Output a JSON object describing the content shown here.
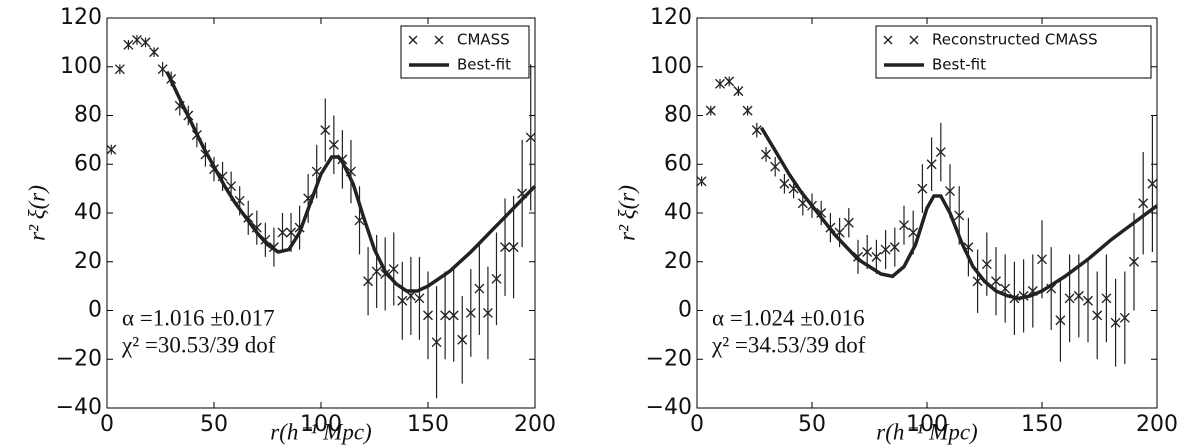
{
  "chart_data": [
    {
      "type": "scatter",
      "xlabel": "r(h⁻¹ Mpc)",
      "ylabel": "r² ξ(r)",
      "xlim": [
        0,
        200
      ],
      "ylim": [
        -40,
        120
      ],
      "xticks": [
        0,
        50,
        100,
        150,
        200
      ],
      "yticks": [
        {
          "value": -40,
          "label": "−40"
        },
        {
          "value": -20,
          "label": "−20"
        },
        0,
        20,
        40,
        60,
        80,
        100,
        120
      ],
      "legend": "upper right",
      "annotations": [
        "α =1.016 ±0.017",
        "χ² =30.53/39  dof"
      ],
      "series": [
        {
          "name": "CMASS",
          "type": "scatter",
          "color": "#222222",
          "x": [
            2,
            6,
            10,
            14,
            18,
            22,
            26,
            30,
            34,
            38,
            42,
            46,
            50,
            54,
            58,
            62,
            66,
            70,
            74,
            78,
            82,
            86,
            90,
            94,
            98,
            102,
            106,
            110,
            114,
            118,
            122,
            126,
            130,
            134,
            138,
            142,
            146,
            150,
            154,
            158,
            162,
            166,
            170,
            174,
            178,
            182,
            186,
            190,
            194,
            198
          ],
          "values": [
            66,
            99,
            109,
            111,
            110,
            106,
            99,
            95,
            84,
            80,
            72,
            64,
            58,
            55,
            51,
            45,
            38,
            34,
            29,
            26,
            32,
            32,
            34,
            46,
            57,
            74,
            68,
            62,
            57,
            37,
            12,
            16,
            15,
            17,
            4,
            6,
            5,
            -2,
            -13,
            -2,
            -2,
            -12,
            -1,
            9,
            -1,
            13,
            26,
            26,
            48,
            71
          ],
          "errors": [
            2,
            2,
            2,
            2,
            2,
            2,
            3,
            3,
            4,
            4,
            5,
            5,
            5,
            6,
            6,
            6,
            7,
            7,
            7,
            8,
            8,
            8,
            9,
            10,
            11,
            13,
            12,
            12,
            13,
            14,
            14,
            15,
            15,
            15,
            16,
            16,
            17,
            18,
            23,
            18,
            19,
            18,
            18,
            19,
            19,
            19,
            20,
            21,
            22,
            30
          ]
        },
        {
          "name": "Best-fit",
          "type": "line",
          "color": "#222222",
          "x": [
            28,
            35,
            40,
            45,
            50,
            55,
            60,
            65,
            70,
            75,
            80,
            85,
            90,
            95,
            100,
            105,
            108,
            110,
            115,
            120,
            125,
            130,
            135,
            140,
            145,
            150,
            160,
            170,
            180,
            190,
            200
          ],
          "values": [
            98,
            85,
            76,
            67,
            59,
            51,
            44,
            38,
            32,
            27,
            24,
            25,
            32,
            44,
            56,
            63,
            63,
            61,
            52,
            38,
            25,
            16,
            11,
            8,
            8,
            10,
            16,
            24,
            33,
            42,
            51
          ]
        }
      ]
    },
    {
      "type": "scatter",
      "xlabel": "r(h⁻¹ Mpc)",
      "ylabel": "r² ξ(r)",
      "xlim": [
        0,
        200
      ],
      "ylim": [
        -40,
        120
      ],
      "xticks": [
        0,
        50,
        100,
        150,
        200
      ],
      "yticks": [
        {
          "value": -40,
          "label": "−40"
        },
        {
          "value": -20,
          "label": "−20"
        },
        0,
        20,
        40,
        60,
        80,
        100,
        120
      ],
      "legend": "upper right",
      "annotations": [
        "α =1.024 ±0.016",
        "χ² =34.53/39  dof"
      ],
      "series": [
        {
          "name": "Reconstructed CMASS",
          "type": "scatter",
          "color": "#222222",
          "x": [
            2,
            6,
            10,
            14,
            18,
            22,
            26,
            30,
            34,
            38,
            42,
            46,
            50,
            54,
            58,
            62,
            66,
            70,
            74,
            78,
            82,
            86,
            90,
            94,
            98,
            102,
            106,
            110,
            114,
            118,
            122,
            126,
            130,
            134,
            138,
            142,
            146,
            150,
            154,
            158,
            162,
            166,
            170,
            174,
            178,
            182,
            186,
            190,
            194,
            198
          ],
          "values": [
            53,
            82,
            93,
            94,
            90,
            82,
            74,
            64,
            59,
            52,
            50,
            44,
            43,
            40,
            34,
            32,
            36,
            22,
            24,
            22,
            25,
            26,
            35,
            32,
            50,
            60,
            65,
            49,
            39,
            26,
            12,
            19,
            12,
            9,
            5,
            6,
            8,
            21,
            9,
            -4,
            5,
            6,
            4,
            -2,
            5,
            -5,
            -3,
            20,
            44,
            52
          ],
          "errors": [
            2,
            2,
            2,
            2,
            2,
            2,
            3,
            3,
            4,
            4,
            4,
            5,
            5,
            5,
            6,
            6,
            6,
            7,
            7,
            7,
            8,
            8,
            8,
            9,
            10,
            11,
            12,
            11,
            12,
            12,
            13,
            13,
            14,
            14,
            15,
            15,
            15,
            16,
            17,
            17,
            18,
            17,
            17,
            18,
            18,
            18,
            19,
            20,
            21,
            28
          ]
        },
        {
          "name": "Best-fit",
          "type": "line",
          "color": "#222222",
          "x": [
            28,
            35,
            40,
            45,
            50,
            55,
            60,
            65,
            70,
            75,
            80,
            85,
            90,
            95,
            100,
            103,
            106,
            110,
            115,
            120,
            125,
            130,
            135,
            140,
            145,
            150,
            160,
            170,
            180,
            190,
            200
          ],
          "values": [
            75,
            64,
            56,
            49,
            43,
            37,
            31,
            26,
            21,
            18,
            15,
            14,
            18,
            27,
            42,
            47,
            47,
            40,
            28,
            18,
            12,
            8,
            6,
            5,
            6,
            8,
            14,
            21,
            29,
            36,
            43
          ]
        }
      ]
    }
  ]
}
